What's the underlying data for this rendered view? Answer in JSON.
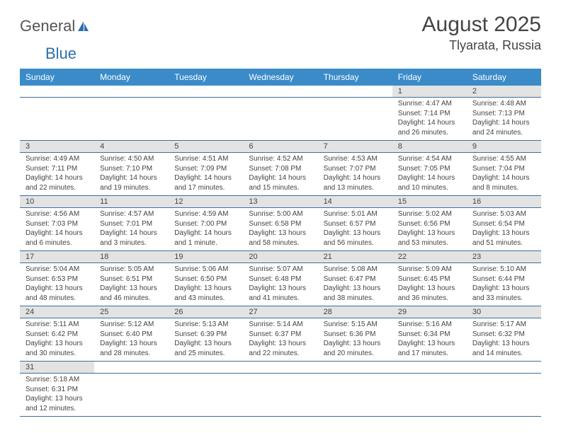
{
  "logo": {
    "text1": "General",
    "text2": "Blue"
  },
  "title": {
    "monthYear": "August 2025",
    "location": "Tlyarata, Russia"
  },
  "colors": {
    "headerBg": "#3b8bc9",
    "headerText": "#ffffff",
    "dayNumBg": "#e3e3e3",
    "border": "#3b6fa0"
  },
  "dayNames": [
    "Sunday",
    "Monday",
    "Tuesday",
    "Wednesday",
    "Thursday",
    "Friday",
    "Saturday"
  ],
  "weeks": [
    [
      null,
      null,
      null,
      null,
      null,
      {
        "num": "1",
        "sr": "Sunrise: 4:47 AM",
        "ss": "Sunset: 7:14 PM",
        "dl": "Daylight: 14 hours and 26 minutes."
      },
      {
        "num": "2",
        "sr": "Sunrise: 4:48 AM",
        "ss": "Sunset: 7:13 PM",
        "dl": "Daylight: 14 hours and 24 minutes."
      }
    ],
    [
      {
        "num": "3",
        "sr": "Sunrise: 4:49 AM",
        "ss": "Sunset: 7:11 PM",
        "dl": "Daylight: 14 hours and 22 minutes."
      },
      {
        "num": "4",
        "sr": "Sunrise: 4:50 AM",
        "ss": "Sunset: 7:10 PM",
        "dl": "Daylight: 14 hours and 19 minutes."
      },
      {
        "num": "5",
        "sr": "Sunrise: 4:51 AM",
        "ss": "Sunset: 7:09 PM",
        "dl": "Daylight: 14 hours and 17 minutes."
      },
      {
        "num": "6",
        "sr": "Sunrise: 4:52 AM",
        "ss": "Sunset: 7:08 PM",
        "dl": "Daylight: 14 hours and 15 minutes."
      },
      {
        "num": "7",
        "sr": "Sunrise: 4:53 AM",
        "ss": "Sunset: 7:07 PM",
        "dl": "Daylight: 14 hours and 13 minutes."
      },
      {
        "num": "8",
        "sr": "Sunrise: 4:54 AM",
        "ss": "Sunset: 7:05 PM",
        "dl": "Daylight: 14 hours and 10 minutes."
      },
      {
        "num": "9",
        "sr": "Sunrise: 4:55 AM",
        "ss": "Sunset: 7:04 PM",
        "dl": "Daylight: 14 hours and 8 minutes."
      }
    ],
    [
      {
        "num": "10",
        "sr": "Sunrise: 4:56 AM",
        "ss": "Sunset: 7:03 PM",
        "dl": "Daylight: 14 hours and 6 minutes."
      },
      {
        "num": "11",
        "sr": "Sunrise: 4:57 AM",
        "ss": "Sunset: 7:01 PM",
        "dl": "Daylight: 14 hours and 3 minutes."
      },
      {
        "num": "12",
        "sr": "Sunrise: 4:59 AM",
        "ss": "Sunset: 7:00 PM",
        "dl": "Daylight: 14 hours and 1 minute."
      },
      {
        "num": "13",
        "sr": "Sunrise: 5:00 AM",
        "ss": "Sunset: 6:58 PM",
        "dl": "Daylight: 13 hours and 58 minutes."
      },
      {
        "num": "14",
        "sr": "Sunrise: 5:01 AM",
        "ss": "Sunset: 6:57 PM",
        "dl": "Daylight: 13 hours and 56 minutes."
      },
      {
        "num": "15",
        "sr": "Sunrise: 5:02 AM",
        "ss": "Sunset: 6:56 PM",
        "dl": "Daylight: 13 hours and 53 minutes."
      },
      {
        "num": "16",
        "sr": "Sunrise: 5:03 AM",
        "ss": "Sunset: 6:54 PM",
        "dl": "Daylight: 13 hours and 51 minutes."
      }
    ],
    [
      {
        "num": "17",
        "sr": "Sunrise: 5:04 AM",
        "ss": "Sunset: 6:53 PM",
        "dl": "Daylight: 13 hours and 48 minutes."
      },
      {
        "num": "18",
        "sr": "Sunrise: 5:05 AM",
        "ss": "Sunset: 6:51 PM",
        "dl": "Daylight: 13 hours and 46 minutes."
      },
      {
        "num": "19",
        "sr": "Sunrise: 5:06 AM",
        "ss": "Sunset: 6:50 PM",
        "dl": "Daylight: 13 hours and 43 minutes."
      },
      {
        "num": "20",
        "sr": "Sunrise: 5:07 AM",
        "ss": "Sunset: 6:48 PM",
        "dl": "Daylight: 13 hours and 41 minutes."
      },
      {
        "num": "21",
        "sr": "Sunrise: 5:08 AM",
        "ss": "Sunset: 6:47 PM",
        "dl": "Daylight: 13 hours and 38 minutes."
      },
      {
        "num": "22",
        "sr": "Sunrise: 5:09 AM",
        "ss": "Sunset: 6:45 PM",
        "dl": "Daylight: 13 hours and 36 minutes."
      },
      {
        "num": "23",
        "sr": "Sunrise: 5:10 AM",
        "ss": "Sunset: 6:44 PM",
        "dl": "Daylight: 13 hours and 33 minutes."
      }
    ],
    [
      {
        "num": "24",
        "sr": "Sunrise: 5:11 AM",
        "ss": "Sunset: 6:42 PM",
        "dl": "Daylight: 13 hours and 30 minutes."
      },
      {
        "num": "25",
        "sr": "Sunrise: 5:12 AM",
        "ss": "Sunset: 6:40 PM",
        "dl": "Daylight: 13 hours and 28 minutes."
      },
      {
        "num": "26",
        "sr": "Sunrise: 5:13 AM",
        "ss": "Sunset: 6:39 PM",
        "dl": "Daylight: 13 hours and 25 minutes."
      },
      {
        "num": "27",
        "sr": "Sunrise: 5:14 AM",
        "ss": "Sunset: 6:37 PM",
        "dl": "Daylight: 13 hours and 22 minutes."
      },
      {
        "num": "28",
        "sr": "Sunrise: 5:15 AM",
        "ss": "Sunset: 6:36 PM",
        "dl": "Daylight: 13 hours and 20 minutes."
      },
      {
        "num": "29",
        "sr": "Sunrise: 5:16 AM",
        "ss": "Sunset: 6:34 PM",
        "dl": "Daylight: 13 hours and 17 minutes."
      },
      {
        "num": "30",
        "sr": "Sunrise: 5:17 AM",
        "ss": "Sunset: 6:32 PM",
        "dl": "Daylight: 13 hours and 14 minutes."
      }
    ],
    [
      {
        "num": "31",
        "sr": "Sunrise: 5:18 AM",
        "ss": "Sunset: 6:31 PM",
        "dl": "Daylight: 13 hours and 12 minutes."
      },
      null,
      null,
      null,
      null,
      null,
      null
    ]
  ]
}
